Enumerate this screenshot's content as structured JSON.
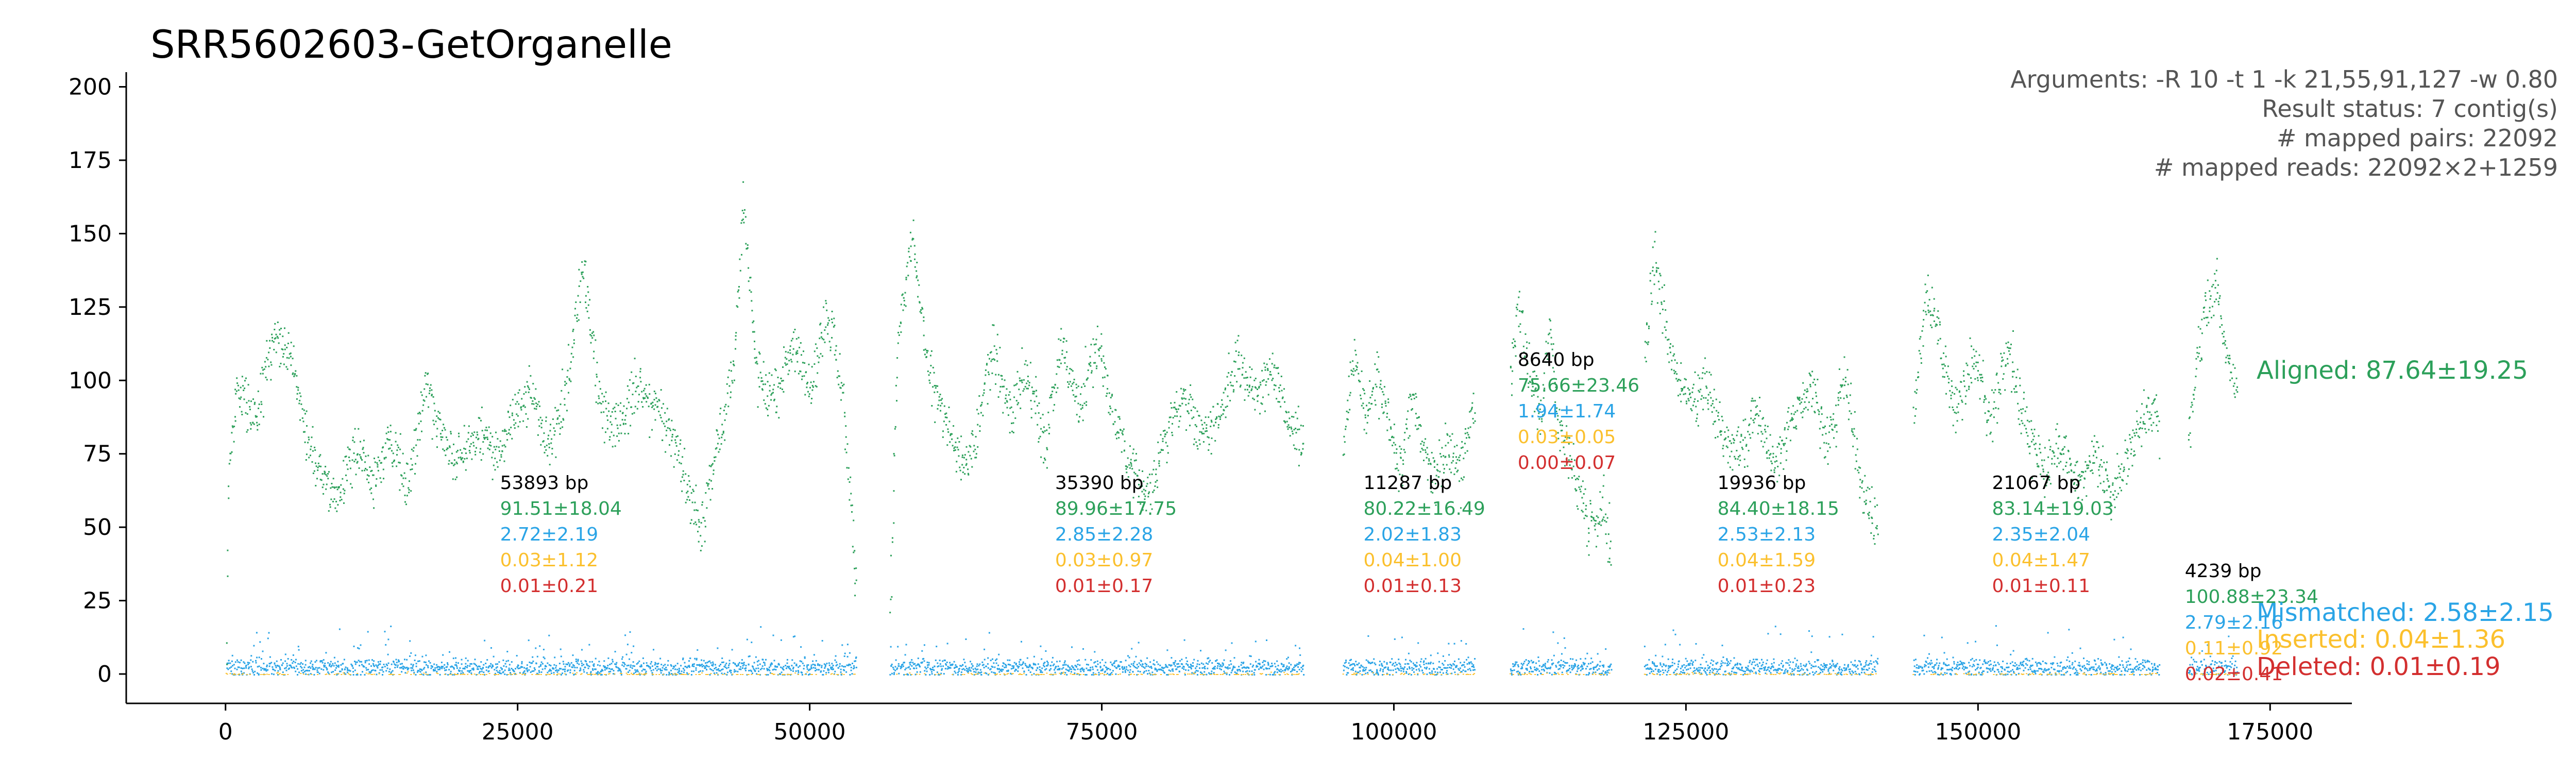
{
  "chart_data": {
    "type": "scatter",
    "title": "SRR5602603-GetOrganelle",
    "xlabel": "",
    "ylabel": "",
    "xlim": [
      -8500,
      182000
    ],
    "ylim": [
      -10,
      205
    ],
    "x_ticks": [
      0,
      25000,
      50000,
      75000,
      100000,
      125000,
      150000,
      175000
    ],
    "x_tick_labels": [
      "0",
      "25000",
      "50000",
      "75000",
      "100000",
      "125000",
      "150000",
      "175000"
    ],
    "y_ticks": [
      0,
      25,
      50,
      75,
      100,
      125,
      150,
      175,
      200
    ],
    "y_tick_labels": [
      "0",
      "25",
      "50",
      "75",
      "100",
      "125",
      "150",
      "175",
      "200"
    ],
    "grid": false,
    "info_lines": [
      "Arguments: -R 10 -t 1 -k 21,55,91,127 -w 0.80",
      "Result status: 7 contig(s)",
      "# mapped pairs: 22092",
      "# mapped reads: 22092×2+1259"
    ],
    "colors": {
      "aligned": "#2ca05a",
      "mismatched": "#2aa4e6",
      "inserted": "#fbc02d",
      "deleted": "#d32f2f",
      "text": "#000000",
      "info": "#555555"
    },
    "series": [
      {
        "key": "aligned",
        "name": "Aligned: 87.64±19.25"
      },
      {
        "key": "mismatched",
        "name": "Mismatched: 2.58±2.15"
      },
      {
        "key": "inserted",
        "name": "Inserted: 0.04±1.36"
      },
      {
        "key": "deleted",
        "name": "Deleted: 0.01±0.19"
      }
    ],
    "contigs": [
      {
        "start": 0,
        "end": 53893,
        "length_label": "53893 bp",
        "aligned": "91.51±18.04",
        "mismatched": "2.72±2.19",
        "inserted": "0.03±1.12",
        "deleted": "0.01±0.21",
        "label_x": 23500,
        "label_y": 63,
        "coverage_profile": [
          [
            0,
            8
          ],
          [
            200,
            75
          ],
          [
            1000,
            95
          ],
          [
            2500,
            88
          ],
          [
            4000,
            115
          ],
          [
            5500,
            108
          ],
          [
            6500,
            85
          ],
          [
            8000,
            70
          ],
          [
            9500,
            60
          ],
          [
            11000,
            78
          ],
          [
            12500,
            66
          ],
          [
            14000,
            82
          ],
          [
            15500,
            62
          ],
          [
            17000,
            100
          ],
          [
            18500,
            78
          ],
          [
            20000,
            72
          ],
          [
            21500,
            84
          ],
          [
            23000,
            74
          ],
          [
            24500,
            88
          ],
          [
            26000,
            96
          ],
          [
            27500,
            78
          ],
          [
            29000,
            95
          ],
          [
            30500,
            140
          ],
          [
            32000,
            90
          ],
          [
            33500,
            84
          ],
          [
            35000,
            98
          ],
          [
            36500,
            92
          ],
          [
            38000,
            84
          ],
          [
            39500,
            66
          ],
          [
            40500,
            48
          ],
          [
            42000,
            80
          ],
          [
            43500,
            108
          ],
          [
            44200,
            160
          ],
          [
            45500,
            100
          ],
          [
            47000,
            94
          ],
          [
            48500,
            112
          ],
          [
            50000,
            96
          ],
          [
            51500,
            124
          ],
          [
            52800,
            92
          ],
          [
            53893,
            30
          ]
        ]
      },
      {
        "start": 56800,
        "end": 92190,
        "length_label": "35390 bp",
        "aligned": "89.96±17.75",
        "mismatched": "2.85±2.28",
        "inserted": "0.03±0.97",
        "deleted": "0.01±0.17",
        "label_x": 71000,
        "label_y": 63,
        "coverage_profile": [
          [
            56800,
            20
          ],
          [
            57400,
            110
          ],
          [
            58700,
            150
          ],
          [
            60000,
            105
          ],
          [
            61500,
            90
          ],
          [
            62800,
            70
          ],
          [
            64000,
            78
          ],
          [
            65500,
            112
          ],
          [
            67000,
            88
          ],
          [
            68500,
            104
          ],
          [
            70000,
            78
          ],
          [
            71500,
            112
          ],
          [
            73000,
            92
          ],
          [
            74500,
            114
          ],
          [
            76000,
            85
          ],
          [
            77500,
            70
          ],
          [
            79000,
            62
          ],
          [
            80500,
            82
          ],
          [
            82000,
            96
          ],
          [
            83500,
            80
          ],
          [
            85000,
            90
          ],
          [
            86500,
            108
          ],
          [
            88000,
            94
          ],
          [
            89500,
            104
          ],
          [
            91000,
            86
          ],
          [
            92190,
            80
          ]
        ]
      },
      {
        "start": 95600,
        "end": 106887,
        "length_label": "11287 bp",
        "aligned": "80.22±16.49",
        "mismatched": "2.02±1.83",
        "inserted": "0.04±1.00",
        "deleted": "0.01±0.13",
        "label_x": 97400,
        "label_y": 63,
        "coverage_profile": [
          [
            95600,
            80
          ],
          [
            96500,
            110
          ],
          [
            97500,
            88
          ],
          [
            98500,
            104
          ],
          [
            99500,
            85
          ],
          [
            100500,
            70
          ],
          [
            101500,
            96
          ],
          [
            102500,
            74
          ],
          [
            103500,
            66
          ],
          [
            104500,
            80
          ],
          [
            105500,
            68
          ],
          [
            106887,
            90
          ]
        ]
      },
      {
        "start": 109900,
        "end": 118540,
        "length_label": "8640 bp",
        "aligned": "75.66±23.46",
        "mismatched": "1.94±1.74",
        "inserted": "0.03±0.05",
        "deleted": "0.00±0.07",
        "label_x": 110600,
        "label_y": 105,
        "coverage_profile": [
          [
            109900,
            100
          ],
          [
            110600,
            128
          ],
          [
            111500,
            100
          ],
          [
            112500,
            88
          ],
          [
            113200,
            120
          ],
          [
            114000,
            84
          ],
          [
            115000,
            72
          ],
          [
            116000,
            60
          ],
          [
            117000,
            50
          ],
          [
            117800,
            58
          ],
          [
            118540,
            40
          ]
        ]
      },
      {
        "start": 121400,
        "end": 141336,
        "length_label": "19936 bp",
        "aligned": "84.40±18.15",
        "mismatched": "2.53±2.13",
        "inserted": "0.04±1.59",
        "deleted": "0.01±0.23",
        "label_x": 127700,
        "label_y": 63,
        "coverage_profile": [
          [
            121400,
            110
          ],
          [
            122300,
            145
          ],
          [
            123500,
            110
          ],
          [
            125000,
            94
          ],
          [
            126500,
            100
          ],
          [
            128000,
            82
          ],
          [
            129500,
            74
          ],
          [
            131000,
            92
          ],
          [
            132500,
            70
          ],
          [
            134000,
            86
          ],
          [
            135500,
            100
          ],
          [
            137000,
            76
          ],
          [
            138500,
            104
          ],
          [
            140000,
            62
          ],
          [
            141336,
            50
          ]
        ]
      },
      {
        "start": 144400,
        "end": 165467,
        "length_label": "21067 bp",
        "aligned": "83.14±19.03",
        "mismatched": "2.35±2.04",
        "inserted": "0.04±1.47",
        "deleted": "0.01±0.11",
        "label_x": 151200,
        "label_y": 63,
        "coverage_profile": [
          [
            144400,
            90
          ],
          [
            145500,
            130
          ],
          [
            146800,
            110
          ],
          [
            148000,
            90
          ],
          [
            149500,
            108
          ],
          [
            151000,
            86
          ],
          [
            152500,
            112
          ],
          [
            154000,
            84
          ],
          [
            155500,
            70
          ],
          [
            157000,
            78
          ],
          [
            158500,
            64
          ],
          [
            160000,
            74
          ],
          [
            161500,
            60
          ],
          [
            163000,
            80
          ],
          [
            164500,
            90
          ],
          [
            165467,
            84
          ]
        ]
      },
      {
        "start": 167900,
        "end": 172139,
        "length_label": "4239 bp",
        "aligned": "100.88±23.34",
        "mismatched": "2.79±2.16",
        "inserted": "0.11±0.92",
        "deleted": "0.02±0.41",
        "label_x": 167700,
        "label_y": 33,
        "coverage_profile": [
          [
            167900,
            80
          ],
          [
            168700,
            110
          ],
          [
            169500,
            125
          ],
          [
            170300,
            134
          ],
          [
            171000,
            112
          ],
          [
            171600,
            100
          ],
          [
            172139,
            100
          ]
        ]
      }
    ]
  }
}
